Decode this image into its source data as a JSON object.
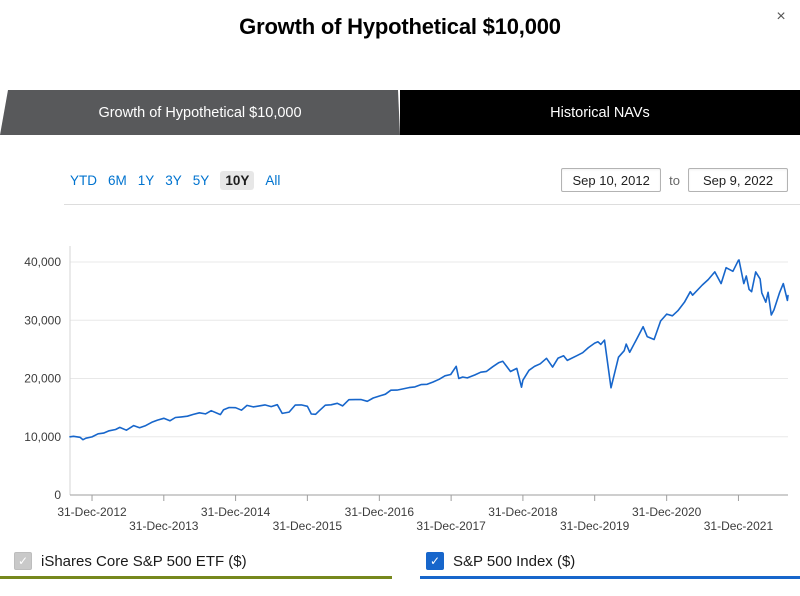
{
  "modal": {
    "title": "Growth of Hypothetical $10,000",
    "close_label": "×"
  },
  "tabs": [
    {
      "label": "Growth of Hypothetical $10,000",
      "active": true
    },
    {
      "label": "Historical NAVs",
      "active": false
    }
  ],
  "ranges": {
    "options": [
      "YTD",
      "6M",
      "1Y",
      "3Y",
      "5Y",
      "10Y",
      "All"
    ],
    "selected": "10Y"
  },
  "date_range": {
    "start": "Sep 10, 2012",
    "separator": "to",
    "end": "Sep 9, 2022"
  },
  "legend": [
    {
      "label": "iShares Core S&P 500 ETF ($)",
      "checked": true,
      "disabled": true,
      "underline_color": "#76881d"
    },
    {
      "label": "S&P 500 Index ($)",
      "checked": true,
      "disabled": false,
      "underline_color": "#1766cb"
    }
  ],
  "chart_data": {
    "type": "line",
    "title": "Growth of Hypothetical $10,000",
    "x_range": [
      "2012-09-10",
      "2022-09-09"
    ],
    "ylim": [
      0,
      40000
    ],
    "grid": true,
    "legend_position": "bottom",
    "y_ticks": [
      {
        "value": 0,
        "label": "0"
      },
      {
        "value": 10000,
        "label": "10,000"
      },
      {
        "value": 20000,
        "label": "20,000"
      },
      {
        "value": 30000,
        "label": "30,000"
      },
      {
        "value": 40000,
        "label": "40,000"
      }
    ],
    "x_ticks": [
      {
        "date": "2012-12-31",
        "label": "31-Dec-2012"
      },
      {
        "date": "2013-12-31",
        "label": "31-Dec-2013"
      },
      {
        "date": "2014-12-31",
        "label": "31-Dec-2014"
      },
      {
        "date": "2015-12-31",
        "label": "31-Dec-2015"
      },
      {
        "date": "2016-12-31",
        "label": "31-Dec-2016"
      },
      {
        "date": "2017-12-31",
        "label": "31-Dec-2017"
      },
      {
        "date": "2018-12-31",
        "label": "31-Dec-2018"
      },
      {
        "date": "2019-12-31",
        "label": "31-Dec-2019"
      },
      {
        "date": "2020-12-31",
        "label": "31-Dec-2020"
      },
      {
        "date": "2021-12-31",
        "label": "31-Dec-2021"
      }
    ],
    "series": [
      {
        "name": "iShares Core S&P 500 ETF ($)",
        "color": "#76881d",
        "visible": false,
        "points": []
      },
      {
        "name": "S&P 500 Index ($)",
        "color": "#1766cb",
        "visible": true,
        "points": [
          [
            "2012-09-10",
            10000
          ],
          [
            "2012-09-28",
            10080
          ],
          [
            "2012-10-31",
            9900
          ],
          [
            "2012-11-15",
            9500
          ],
          [
            "2012-11-30",
            9750
          ],
          [
            "2012-12-31",
            9980
          ],
          [
            "2013-01-31",
            10500
          ],
          [
            "2013-02-28",
            10630
          ],
          [
            "2013-03-28",
            11020
          ],
          [
            "2013-04-30",
            11240
          ],
          [
            "2013-05-21",
            11600
          ],
          [
            "2013-06-24",
            11130
          ],
          [
            "2013-07-31",
            11910
          ],
          [
            "2013-08-30",
            11560
          ],
          [
            "2013-09-30",
            11920
          ],
          [
            "2013-10-31",
            12480
          ],
          [
            "2013-11-29",
            12850
          ],
          [
            "2013-12-31",
            13170
          ],
          [
            "2014-01-31",
            12730
          ],
          [
            "2014-02-28",
            13300
          ],
          [
            "2014-03-31",
            13410
          ],
          [
            "2014-04-30",
            13520
          ],
          [
            "2014-05-30",
            13830
          ],
          [
            "2014-06-30",
            14120
          ],
          [
            "2014-07-31",
            13930
          ],
          [
            "2014-08-29",
            14480
          ],
          [
            "2014-10-15",
            13800
          ],
          [
            "2014-10-31",
            14640
          ],
          [
            "2014-11-28",
            15030
          ],
          [
            "2014-12-31",
            14990
          ],
          [
            "2015-01-30",
            14550
          ],
          [
            "2015-02-27",
            15380
          ],
          [
            "2015-03-31",
            15130
          ],
          [
            "2015-04-30",
            15290
          ],
          [
            "2015-05-29",
            15470
          ],
          [
            "2015-06-30",
            15180
          ],
          [
            "2015-07-31",
            15510
          ],
          [
            "2015-08-25",
            14000
          ],
          [
            "2015-09-29",
            14230
          ],
          [
            "2015-10-30",
            15430
          ],
          [
            "2015-11-30",
            15470
          ],
          [
            "2015-12-31",
            15230
          ],
          [
            "2016-01-20",
            13900
          ],
          [
            "2016-02-11",
            13850
          ],
          [
            "2016-02-29",
            14450
          ],
          [
            "2016-03-31",
            15420
          ],
          [
            "2016-04-29",
            15480
          ],
          [
            "2016-05-31",
            15740
          ],
          [
            "2016-06-27",
            15300
          ],
          [
            "2016-07-29",
            16360
          ],
          [
            "2016-08-31",
            16370
          ],
          [
            "2016-09-30",
            16380
          ],
          [
            "2016-10-31",
            16080
          ],
          [
            "2016-11-30",
            16660
          ],
          [
            "2016-12-30",
            16980
          ],
          [
            "2017-01-31",
            17310
          ],
          [
            "2017-02-28",
            17990
          ],
          [
            "2017-03-31",
            18010
          ],
          [
            "2017-04-28",
            18200
          ],
          [
            "2017-05-31",
            18440
          ],
          [
            "2017-06-30",
            18560
          ],
          [
            "2017-07-31",
            18950
          ],
          [
            "2017-08-31",
            19000
          ],
          [
            "2017-09-29",
            19390
          ],
          [
            "2017-10-31",
            19860
          ],
          [
            "2017-11-30",
            20460
          ],
          [
            "2017-12-29",
            20690
          ],
          [
            "2018-01-26",
            22100
          ],
          [
            "2018-02-08",
            20000
          ],
          [
            "2018-02-28",
            20250
          ],
          [
            "2018-03-23",
            20100
          ],
          [
            "2018-04-30",
            20600
          ],
          [
            "2018-05-31",
            21080
          ],
          [
            "2018-06-29",
            21220
          ],
          [
            "2018-07-31",
            22020
          ],
          [
            "2018-08-31",
            22730
          ],
          [
            "2018-09-20",
            22950
          ],
          [
            "2018-10-29",
            21200
          ],
          [
            "2018-11-30",
            21730
          ],
          [
            "2018-12-24",
            18500
          ],
          [
            "2018-12-31",
            19700
          ],
          [
            "2019-01-31",
            21400
          ],
          [
            "2019-02-28",
            22080
          ],
          [
            "2019-03-29",
            22530
          ],
          [
            "2019-04-30",
            23460
          ],
          [
            "2019-05-31",
            21950
          ],
          [
            "2019-06-28",
            23500
          ],
          [
            "2019-07-26",
            23900
          ],
          [
            "2019-08-14",
            23100
          ],
          [
            "2019-09-30",
            23900
          ],
          [
            "2019-10-31",
            24430
          ],
          [
            "2019-11-29",
            25300
          ],
          [
            "2019-12-31",
            26070
          ],
          [
            "2020-01-17",
            26300
          ],
          [
            "2020-01-31",
            25850
          ],
          [
            "2020-02-19",
            26600
          ],
          [
            "2020-03-23",
            18400
          ],
          [
            "2020-04-30",
            23650
          ],
          [
            "2020-05-29",
            24780
          ],
          [
            "2020-06-08",
            25900
          ],
          [
            "2020-06-26",
            24500
          ],
          [
            "2020-07-31",
            26740
          ],
          [
            "2020-09-02",
            28900
          ],
          [
            "2020-09-23",
            27200
          ],
          [
            "2020-10-28",
            26700
          ],
          [
            "2020-11-30",
            29870
          ],
          [
            "2020-12-31",
            31050
          ],
          [
            "2021-01-29",
            30760
          ],
          [
            "2021-02-26",
            31640
          ],
          [
            "2021-03-31",
            33080
          ],
          [
            "2021-04-30",
            34900
          ],
          [
            "2021-05-12",
            34300
          ],
          [
            "2021-06-30",
            36060
          ],
          [
            "2021-07-30",
            36970
          ],
          [
            "2021-09-02",
            38300
          ],
          [
            "2021-10-04",
            36300
          ],
          [
            "2021-10-29",
            39030
          ],
          [
            "2021-12-03",
            38400
          ],
          [
            "2021-12-31",
            40300
          ],
          [
            "2022-01-03",
            40350
          ],
          [
            "2022-01-27",
            36300
          ],
          [
            "2022-02-09",
            37600
          ],
          [
            "2022-02-23",
            35300
          ],
          [
            "2022-03-08",
            34900
          ],
          [
            "2022-03-29",
            38300
          ],
          [
            "2022-04-20",
            37100
          ],
          [
            "2022-04-29",
            34700
          ],
          [
            "2022-05-19",
            33100
          ],
          [
            "2022-05-31",
            34800
          ],
          [
            "2022-06-16",
            30900
          ],
          [
            "2022-06-30",
            31800
          ],
          [
            "2022-07-29",
            34800
          ],
          [
            "2022-08-16",
            36300
          ],
          [
            "2022-09-06",
            33400
          ],
          [
            "2022-09-09",
            34250
          ]
        ]
      }
    ]
  }
}
